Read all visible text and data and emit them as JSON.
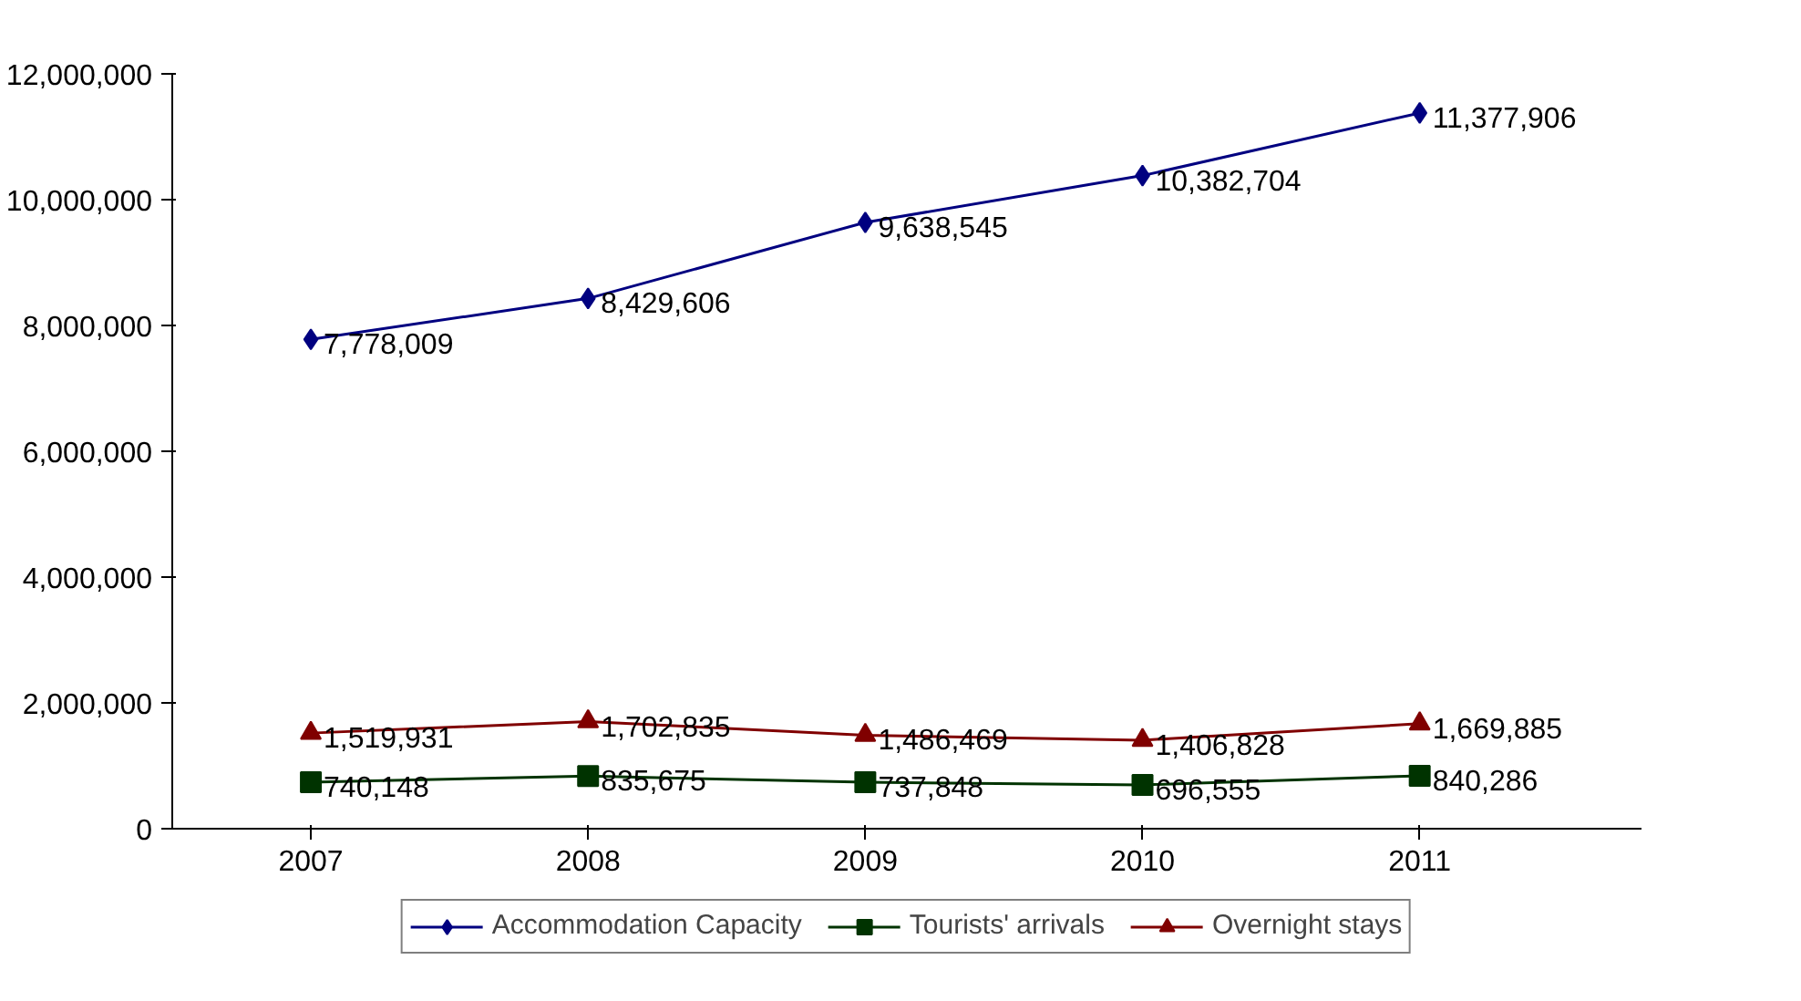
{
  "chart_data": {
    "type": "line",
    "categories": [
      "2007",
      "2008",
      "2009",
      "2010",
      "2011"
    ],
    "series": [
      {
        "name": "Accommodation Capacity",
        "color": "#000080",
        "marker": "diamond",
        "values": [
          7778009,
          8429606,
          9638545,
          10382704,
          11377906
        ],
        "value_labels": [
          "7,778,009",
          "8,429,606",
          "9,638,545",
          "10,382,704",
          "11,377,906"
        ]
      },
      {
        "name": "Tourists' arrivals",
        "color": "#003300",
        "marker": "square",
        "values": [
          740148,
          835675,
          737848,
          696555,
          840286
        ],
        "value_labels": [
          "740,148",
          "835,675",
          "737,848",
          "696,555",
          "840,286"
        ]
      },
      {
        "name": "Overnight stays",
        "color": "#800000",
        "marker": "triangle",
        "values": [
          1519931,
          1702835,
          1486469,
          1406828,
          1669885
        ],
        "value_labels": [
          "1,519,931",
          "1,702,835",
          "1,486,469",
          "1,406,828",
          "1,669,885"
        ]
      }
    ],
    "ylim": [
      0,
      12000000
    ],
    "yticks": [
      0,
      {
        "value": 2000000,
        "label": "2,000,000"
      },
      {
        "value": 4000000,
        "label": "4,000,000"
      },
      {
        "value": 6000000,
        "label": "6,000,000"
      },
      {
        "value": 8000000,
        "label": "8,000,000"
      },
      {
        "value": 10000000,
        "label": "10,000,000"
      },
      {
        "value": 12000000,
        "label": "12,000,000"
      }
    ],
    "grid": false,
    "legend": "bottom",
    "line_style": "solid"
  }
}
